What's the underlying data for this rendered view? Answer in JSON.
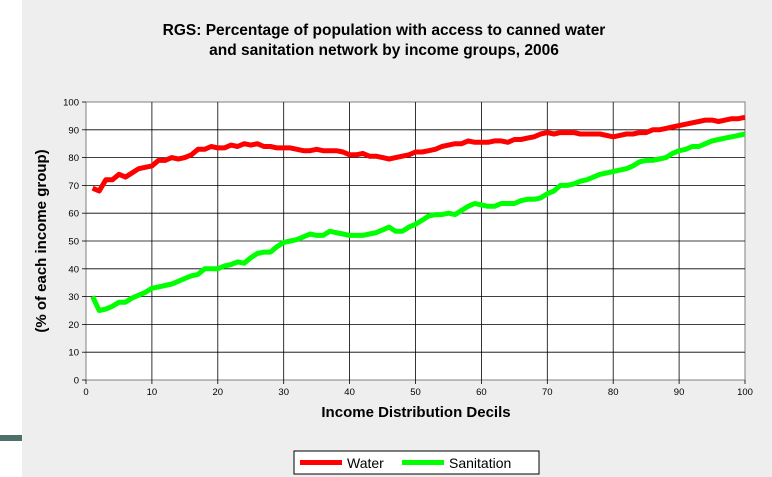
{
  "chart_data": {
    "type": "line",
    "title_lines": [
      "RGS: Percentage of population with access to canned water",
      "and sanitation network by income groups, 2006"
    ],
    "xlabel": "Income Distribution Decils",
    "ylabel": "(% of each income group)",
    "xlim": [
      0,
      100
    ],
    "ylim": [
      0,
      100
    ],
    "xticks": [
      0,
      10,
      20,
      30,
      40,
      50,
      60,
      70,
      80,
      90,
      100
    ],
    "yticks": [
      0,
      10,
      20,
      30,
      40,
      50,
      60,
      70,
      80,
      90,
      100
    ],
    "grid": true,
    "legend_position": "bottom",
    "series": [
      {
        "name": "Water",
        "color": "#ff0000",
        "x": [
          1,
          2,
          3,
          4,
          5,
          6,
          7,
          8,
          9,
          10,
          11,
          12,
          13,
          14,
          15,
          16,
          17,
          18,
          19,
          20,
          21,
          22,
          23,
          24,
          25,
          26,
          27,
          28,
          29,
          30,
          31,
          32,
          33,
          34,
          35,
          36,
          37,
          38,
          39,
          40,
          41,
          42,
          43,
          44,
          45,
          46,
          47,
          48,
          49,
          50,
          51,
          52,
          53,
          54,
          55,
          56,
          57,
          58,
          59,
          60,
          61,
          62,
          63,
          64,
          65,
          66,
          67,
          68,
          69,
          70,
          71,
          72,
          73,
          74,
          75,
          76,
          77,
          78,
          79,
          80,
          81,
          82,
          83,
          84,
          85,
          86,
          87,
          88,
          89,
          90,
          91,
          92,
          93,
          94,
          95,
          96,
          97,
          98,
          99,
          100
        ],
        "values": [
          69,
          68,
          72,
          72,
          74,
          73,
          74.5,
          76,
          76.5,
          77,
          79,
          79,
          80,
          79.5,
          80,
          81,
          83,
          83,
          84,
          83.5,
          83.5,
          84.5,
          84,
          85,
          84.5,
          85,
          84,
          84,
          83.5,
          83.5,
          83.5,
          83,
          82.5,
          82.5,
          83,
          82.5,
          82.5,
          82.5,
          82,
          81,
          81,
          81.5,
          80.5,
          80.5,
          80,
          79.5,
          80,
          80.5,
          81,
          82,
          82,
          82.5,
          83,
          84,
          84.5,
          85,
          85,
          86,
          85.5,
          85.5,
          85.5,
          86,
          86,
          85.5,
          86.5,
          86.5,
          87,
          87.5,
          88.5,
          89,
          88.5,
          89,
          89,
          89,
          88.5,
          88.5,
          88.5,
          88.5,
          88,
          87.5,
          88,
          88.5,
          88.5,
          89,
          89,
          90,
          90,
          90.5,
          91,
          91.5,
          92,
          92.5,
          93,
          93.5,
          93.5,
          93,
          93.5,
          94,
          94,
          94.5
        ]
      },
      {
        "name": "Sanitation",
        "color": "#00ff00",
        "x": [
          1,
          2,
          3,
          4,
          5,
          6,
          7,
          8,
          9,
          10,
          11,
          12,
          13,
          14,
          15,
          16,
          17,
          18,
          19,
          20,
          21,
          22,
          23,
          24,
          25,
          26,
          27,
          28,
          29,
          30,
          31,
          32,
          33,
          34,
          35,
          36,
          37,
          38,
          39,
          40,
          41,
          42,
          43,
          44,
          45,
          46,
          47,
          48,
          49,
          50,
          51,
          52,
          53,
          54,
          55,
          56,
          57,
          58,
          59,
          60,
          61,
          62,
          63,
          64,
          65,
          66,
          67,
          68,
          69,
          70,
          71,
          72,
          73,
          74,
          75,
          76,
          77,
          78,
          79,
          80,
          81,
          82,
          83,
          84,
          85,
          86,
          87,
          88,
          89,
          90,
          91,
          92,
          93,
          94,
          95,
          96,
          97,
          98,
          99,
          100
        ],
        "values": [
          30,
          25,
          25.5,
          26.5,
          28,
          28,
          29.5,
          30.5,
          31.5,
          33,
          33.5,
          34,
          34.5,
          35.5,
          36.5,
          37.5,
          38,
          40,
          40,
          40,
          41,
          41.5,
          42.5,
          42,
          44,
          45.5,
          46,
          46,
          48,
          49.5,
          50,
          50.5,
          51.5,
          52.5,
          52,
          52,
          53.5,
          53,
          52.5,
          52,
          52,
          52,
          52.5,
          53,
          54,
          55,
          53.5,
          53.5,
          55,
          56,
          57.5,
          59,
          59.5,
          59.5,
          60,
          59.5,
          61,
          62.5,
          63.5,
          63,
          62.5,
          62.5,
          63.5,
          63.5,
          63.5,
          64.5,
          65,
          65,
          65.5,
          67,
          68,
          70,
          70,
          70.5,
          71.5,
          72,
          73,
          74,
          74.5,
          75,
          75.5,
          76,
          77,
          78.5,
          79,
          79,
          79.5,
          80,
          81.5,
          82.5,
          83,
          84,
          84,
          85,
          86,
          86.5,
          87,
          87.5,
          88,
          88.5
        ]
      }
    ]
  }
}
